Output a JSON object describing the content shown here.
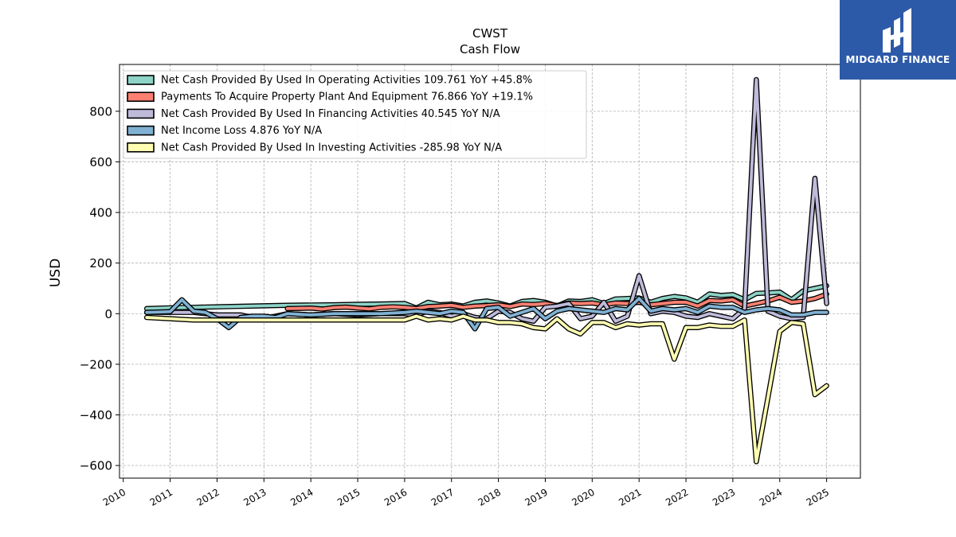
{
  "chart_data": {
    "type": "area",
    "title": "CWST",
    "subtitle": "Cash Flow",
    "ylabel": "USD",
    "ylim": [
      -650,
      985
    ],
    "xlim": [
      2009.92,
      2025.72
    ],
    "yticks": [
      -600,
      -400,
      -200,
      0,
      200,
      400,
      600,
      800
    ],
    "ytick_labels": [
      "−600",
      "−400",
      "−200",
      "0",
      "200",
      "400",
      "600",
      "800"
    ],
    "xtick_labels": [
      "2010",
      "2011",
      "2012",
      "2013",
      "2014",
      "2015",
      "2016",
      "2017",
      "2018",
      "2019",
      "2020",
      "2021",
      "2022",
      "2023",
      "2024",
      "2025"
    ],
    "grid": true,
    "legend_position": "top-left",
    "series": [
      {
        "name": "Net Cash Provided By Used In Operating Activities",
        "legend": "Net Cash Provided By Used In Operating Activities  109.761 YoY +45.8%",
        "color": "#8dd3c7",
        "points": [
          [
            2010.5,
            20
          ],
          [
            2011.0,
            23
          ],
          [
            2011.5,
            25
          ],
          [
            2012.0,
            27
          ],
          [
            2012.5,
            29
          ],
          [
            2013.0,
            31
          ],
          [
            2013.5,
            33
          ],
          [
            2014.0,
            34
          ],
          [
            2014.5,
            35
          ],
          [
            2015.0,
            37
          ],
          [
            2015.5,
            38
          ],
          [
            2016.0,
            40
          ],
          [
            2016.25,
            22
          ],
          [
            2016.5,
            45
          ],
          [
            2016.75,
            35
          ],
          [
            2017.0,
            38
          ],
          [
            2017.25,
            30
          ],
          [
            2017.5,
            45
          ],
          [
            2017.75,
            50
          ],
          [
            2018.0,
            42
          ],
          [
            2018.25,
            30
          ],
          [
            2018.5,
            48
          ],
          [
            2018.75,
            52
          ],
          [
            2019.0,
            45
          ],
          [
            2019.25,
            30
          ],
          [
            2019.5,
            50
          ],
          [
            2019.75,
            48
          ],
          [
            2020.0,
            55
          ],
          [
            2020.25,
            40
          ],
          [
            2020.5,
            58
          ],
          [
            2020.75,
            60
          ],
          [
            2021.0,
            62
          ],
          [
            2021.25,
            45
          ],
          [
            2021.5,
            60
          ],
          [
            2021.75,
            68
          ],
          [
            2022.0,
            62
          ],
          [
            2022.25,
            45
          ],
          [
            2022.5,
            78
          ],
          [
            2022.75,
            72
          ],
          [
            2023.0,
            75
          ],
          [
            2023.25,
            55
          ],
          [
            2023.5,
            80
          ],
          [
            2023.75,
            82
          ],
          [
            2024.0,
            85
          ],
          [
            2024.25,
            55
          ],
          [
            2024.5,
            90
          ],
          [
            2024.75,
            100
          ],
          [
            2025.0,
            110
          ]
        ]
      },
      {
        "name": "Payments To Acquire Property Plant And Equipment",
        "legend": "Payments To Acquire Property Plant And Equipment  76.866 YoY +19.1%",
        "color": "#fb8072",
        "points": [
          [
            2013.5,
            20
          ],
          [
            2014.0,
            22
          ],
          [
            2014.25,
            18
          ],
          [
            2014.5,
            24
          ],
          [
            2014.75,
            26
          ],
          [
            2015.0,
            22
          ],
          [
            2015.25,
            19
          ],
          [
            2015.5,
            25
          ],
          [
            2015.75,
            27
          ],
          [
            2016.0,
            25
          ],
          [
            2016.25,
            20
          ],
          [
            2016.5,
            28
          ],
          [
            2016.75,
            30
          ],
          [
            2017.0,
            33
          ],
          [
            2017.25,
            25
          ],
          [
            2017.5,
            30
          ],
          [
            2017.75,
            32
          ],
          [
            2018.0,
            35
          ],
          [
            2018.25,
            28
          ],
          [
            2018.5,
            38
          ],
          [
            2018.75,
            36
          ],
          [
            2019.0,
            40
          ],
          [
            2019.25,
            32
          ],
          [
            2019.5,
            42
          ],
          [
            2019.75,
            40
          ],
          [
            2020.0,
            42
          ],
          [
            2020.25,
            35
          ],
          [
            2020.5,
            42
          ],
          [
            2020.75,
            40
          ],
          [
            2021.0,
            45
          ],
          [
            2021.25,
            35
          ],
          [
            2021.5,
            40
          ],
          [
            2021.75,
            45
          ],
          [
            2022.0,
            45
          ],
          [
            2022.25,
            30
          ],
          [
            2022.5,
            52
          ],
          [
            2022.75,
            50
          ],
          [
            2023.0,
            55
          ],
          [
            2023.25,
            30
          ],
          [
            2023.5,
            40
          ],
          [
            2023.75,
            50
          ],
          [
            2024.0,
            65
          ],
          [
            2024.25,
            45
          ],
          [
            2024.5,
            50
          ],
          [
            2024.75,
            60
          ],
          [
            2025.0,
            77
          ]
        ]
      },
      {
        "name": "Net Cash Provided By Used In Financing Activities",
        "legend": "Net Cash Provided By Used In Financing Activities  40.545 YoY N/A",
        "color": "#bebada",
        "points": [
          [
            2010.5,
            5
          ],
          [
            2011.0,
            5
          ],
          [
            2011.5,
            5
          ],
          [
            2012.0,
            -5
          ],
          [
            2012.25,
            -5
          ],
          [
            2012.5,
            -5
          ],
          [
            2012.75,
            -15
          ],
          [
            2013.0,
            -20
          ],
          [
            2013.25,
            -10
          ],
          [
            2013.5,
            0
          ],
          [
            2014.0,
            -5
          ],
          [
            2014.5,
            0
          ],
          [
            2015.0,
            -5
          ],
          [
            2015.5,
            0
          ],
          [
            2016.0,
            0
          ],
          [
            2016.25,
            -5
          ],
          [
            2016.5,
            10
          ],
          [
            2016.75,
            5
          ],
          [
            2017.0,
            -10
          ],
          [
            2017.25,
            0
          ],
          [
            2017.5,
            -15
          ],
          [
            2017.75,
            -20
          ],
          [
            2018.0,
            10
          ],
          [
            2018.25,
            5
          ],
          [
            2018.5,
            -20
          ],
          [
            2018.75,
            -30
          ],
          [
            2019.0,
            25
          ],
          [
            2019.25,
            30
          ],
          [
            2019.5,
            40
          ],
          [
            2019.75,
            -20
          ],
          [
            2020.0,
            -10
          ],
          [
            2020.25,
            45
          ],
          [
            2020.5,
            -30
          ],
          [
            2020.75,
            -10
          ],
          [
            2021.0,
            150
          ],
          [
            2021.25,
            0
          ],
          [
            2021.5,
            10
          ],
          [
            2021.75,
            5
          ],
          [
            2022.0,
            -10
          ],
          [
            2022.25,
            -15
          ],
          [
            2022.5,
            0
          ],
          [
            2022.75,
            -10
          ],
          [
            2023.0,
            -20
          ],
          [
            2023.25,
            20
          ],
          [
            2023.5,
            925
          ],
          [
            2023.75,
            10
          ],
          [
            2024.0,
            -10
          ],
          [
            2024.25,
            -20
          ],
          [
            2024.5,
            -15
          ],
          [
            2024.75,
            535
          ],
          [
            2025.0,
            40
          ]
        ]
      },
      {
        "name": "Net Income Loss",
        "legend": "Net Income Loss  4.876 YoY N/A",
        "color": "#80b1d3",
        "points": [
          [
            2010.5,
            5
          ],
          [
            2011.0,
            8
          ],
          [
            2011.25,
            55
          ],
          [
            2011.5,
            10
          ],
          [
            2011.75,
            5
          ],
          [
            2012.0,
            -20
          ],
          [
            2012.25,
            -55
          ],
          [
            2012.5,
            -15
          ],
          [
            2012.75,
            -10
          ],
          [
            2013.0,
            -10
          ],
          [
            2013.25,
            -15
          ],
          [
            2013.5,
            0
          ],
          [
            2014.0,
            -5
          ],
          [
            2014.5,
            0
          ],
          [
            2015.0,
            0
          ],
          [
            2015.5,
            0
          ],
          [
            2016.0,
            5
          ],
          [
            2016.25,
            10
          ],
          [
            2016.5,
            5
          ],
          [
            2016.75,
            0
          ],
          [
            2017.0,
            10
          ],
          [
            2017.25,
            5
          ],
          [
            2017.5,
            -60
          ],
          [
            2017.75,
            20
          ],
          [
            2018.0,
            25
          ],
          [
            2018.25,
            -10
          ],
          [
            2018.5,
            5
          ],
          [
            2018.75,
            20
          ],
          [
            2019.0,
            -20
          ],
          [
            2019.25,
            10
          ],
          [
            2019.5,
            20
          ],
          [
            2019.75,
            15
          ],
          [
            2020.0,
            10
          ],
          [
            2020.25,
            5
          ],
          [
            2020.5,
            20
          ],
          [
            2020.75,
            15
          ],
          [
            2021.0,
            60
          ],
          [
            2021.25,
            10
          ],
          [
            2021.5,
            20
          ],
          [
            2021.75,
            15
          ],
          [
            2022.0,
            20
          ],
          [
            2022.25,
            5
          ],
          [
            2022.5,
            30
          ],
          [
            2022.75,
            25
          ],
          [
            2023.0,
            25
          ],
          [
            2023.25,
            5
          ],
          [
            2023.5,
            15
          ],
          [
            2023.75,
            20
          ],
          [
            2024.0,
            15
          ],
          [
            2024.25,
            -5
          ],
          [
            2024.5,
            -5
          ],
          [
            2024.75,
            5
          ],
          [
            2025.0,
            5
          ]
        ]
      },
      {
        "name": "Net Cash Provided By Used In Investing Activities",
        "legend": "Net Cash Provided By Used In Investing Activities  -285.98 YoY N/A",
        "color": "#ffffb3",
        "points": [
          [
            2010.5,
            -15
          ],
          [
            2011.0,
            -20
          ],
          [
            2011.5,
            -25
          ],
          [
            2012.0,
            -25
          ],
          [
            2012.5,
            -25
          ],
          [
            2013.0,
            -25
          ],
          [
            2013.5,
            -25
          ],
          [
            2014.0,
            -25
          ],
          [
            2014.5,
            -25
          ],
          [
            2015.0,
            -25
          ],
          [
            2015.5,
            -25
          ],
          [
            2016.0,
            -25
          ],
          [
            2016.25,
            -10
          ],
          [
            2016.5,
            -25
          ],
          [
            2016.75,
            -20
          ],
          [
            2017.0,
            -25
          ],
          [
            2017.25,
            -10
          ],
          [
            2017.5,
            -25
          ],
          [
            2017.75,
            -25
          ],
          [
            2018.0,
            -35
          ],
          [
            2018.25,
            -35
          ],
          [
            2018.5,
            -40
          ],
          [
            2018.75,
            -55
          ],
          [
            2019.0,
            -60
          ],
          [
            2019.25,
            -20
          ],
          [
            2019.5,
            -60
          ],
          [
            2019.75,
            -80
          ],
          [
            2020.0,
            -35
          ],
          [
            2020.25,
            -35
          ],
          [
            2020.5,
            -55
          ],
          [
            2020.75,
            -40
          ],
          [
            2021.0,
            -45
          ],
          [
            2021.25,
            -40
          ],
          [
            2021.5,
            -40
          ],
          [
            2021.75,
            -180
          ],
          [
            2022.0,
            -55
          ],
          [
            2022.25,
            -55
          ],
          [
            2022.5,
            -45
          ],
          [
            2022.75,
            -50
          ],
          [
            2023.0,
            -50
          ],
          [
            2023.25,
            -25
          ],
          [
            2023.5,
            -585
          ],
          [
            2023.75,
            -330
          ],
          [
            2024.0,
            -70
          ],
          [
            2024.25,
            -35
          ],
          [
            2024.5,
            -40
          ],
          [
            2024.75,
            -320
          ],
          [
            2025.0,
            -285
          ]
        ]
      }
    ]
  },
  "logo": {
    "text": "MIDGARD FINANCE"
  }
}
